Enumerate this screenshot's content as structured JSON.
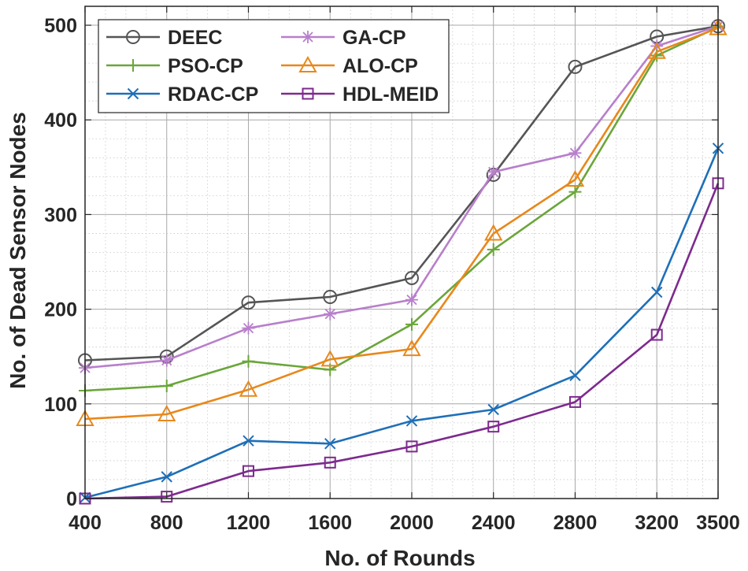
{
  "chart_data": {
    "type": "line",
    "title": "",
    "xlabel": "No. of Rounds",
    "ylabel": "No. of Dead Sensor Nodes",
    "x": [
      400,
      800,
      1200,
      1600,
      2000,
      2400,
      2800,
      3200,
      3500
    ],
    "x_tick_labels": [
      "400",
      "800",
      "1200",
      "1600",
      "2000",
      "2400",
      "2800",
      "3200",
      "3500"
    ],
    "ylim": [
      0,
      520
    ],
    "y_ticks": [
      0,
      100,
      200,
      300,
      400,
      500
    ],
    "y_tick_labels": [
      "0",
      "100",
      "200",
      "300",
      "400",
      "500"
    ],
    "grid": true,
    "legend_position": "top-left",
    "series": [
      {
        "name": "DEEC",
        "marker": "circle",
        "color": "#555555",
        "values": [
          146,
          150,
          207,
          213,
          233,
          342,
          456,
          488,
          499
        ]
      },
      {
        "name": "GA-CP",
        "marker": "asterisk",
        "color": "#b87fcb",
        "values": [
          138,
          146,
          180,
          195,
          210,
          345,
          365,
          478,
          499
        ]
      },
      {
        "name": "PSO-CP",
        "marker": "plus",
        "color": "#6aa63a",
        "values": [
          114,
          119,
          145,
          136,
          184,
          263,
          324,
          468,
          498
        ]
      },
      {
        "name": "ALO-CP",
        "marker": "triangle",
        "color": "#e8881a",
        "values": [
          84,
          89,
          115,
          147,
          158,
          280,
          337,
          472,
          497
        ]
      },
      {
        "name": "RDAC-CP",
        "marker": "x",
        "color": "#1e6fb8",
        "values": [
          1,
          23,
          61,
          58,
          82,
          94,
          130,
          218,
          370
        ]
      },
      {
        "name": "HDL-MEID",
        "marker": "square",
        "color": "#7d2a8e",
        "values": [
          0,
          2,
          29,
          38,
          55,
          76,
          102,
          173,
          333
        ]
      }
    ]
  }
}
